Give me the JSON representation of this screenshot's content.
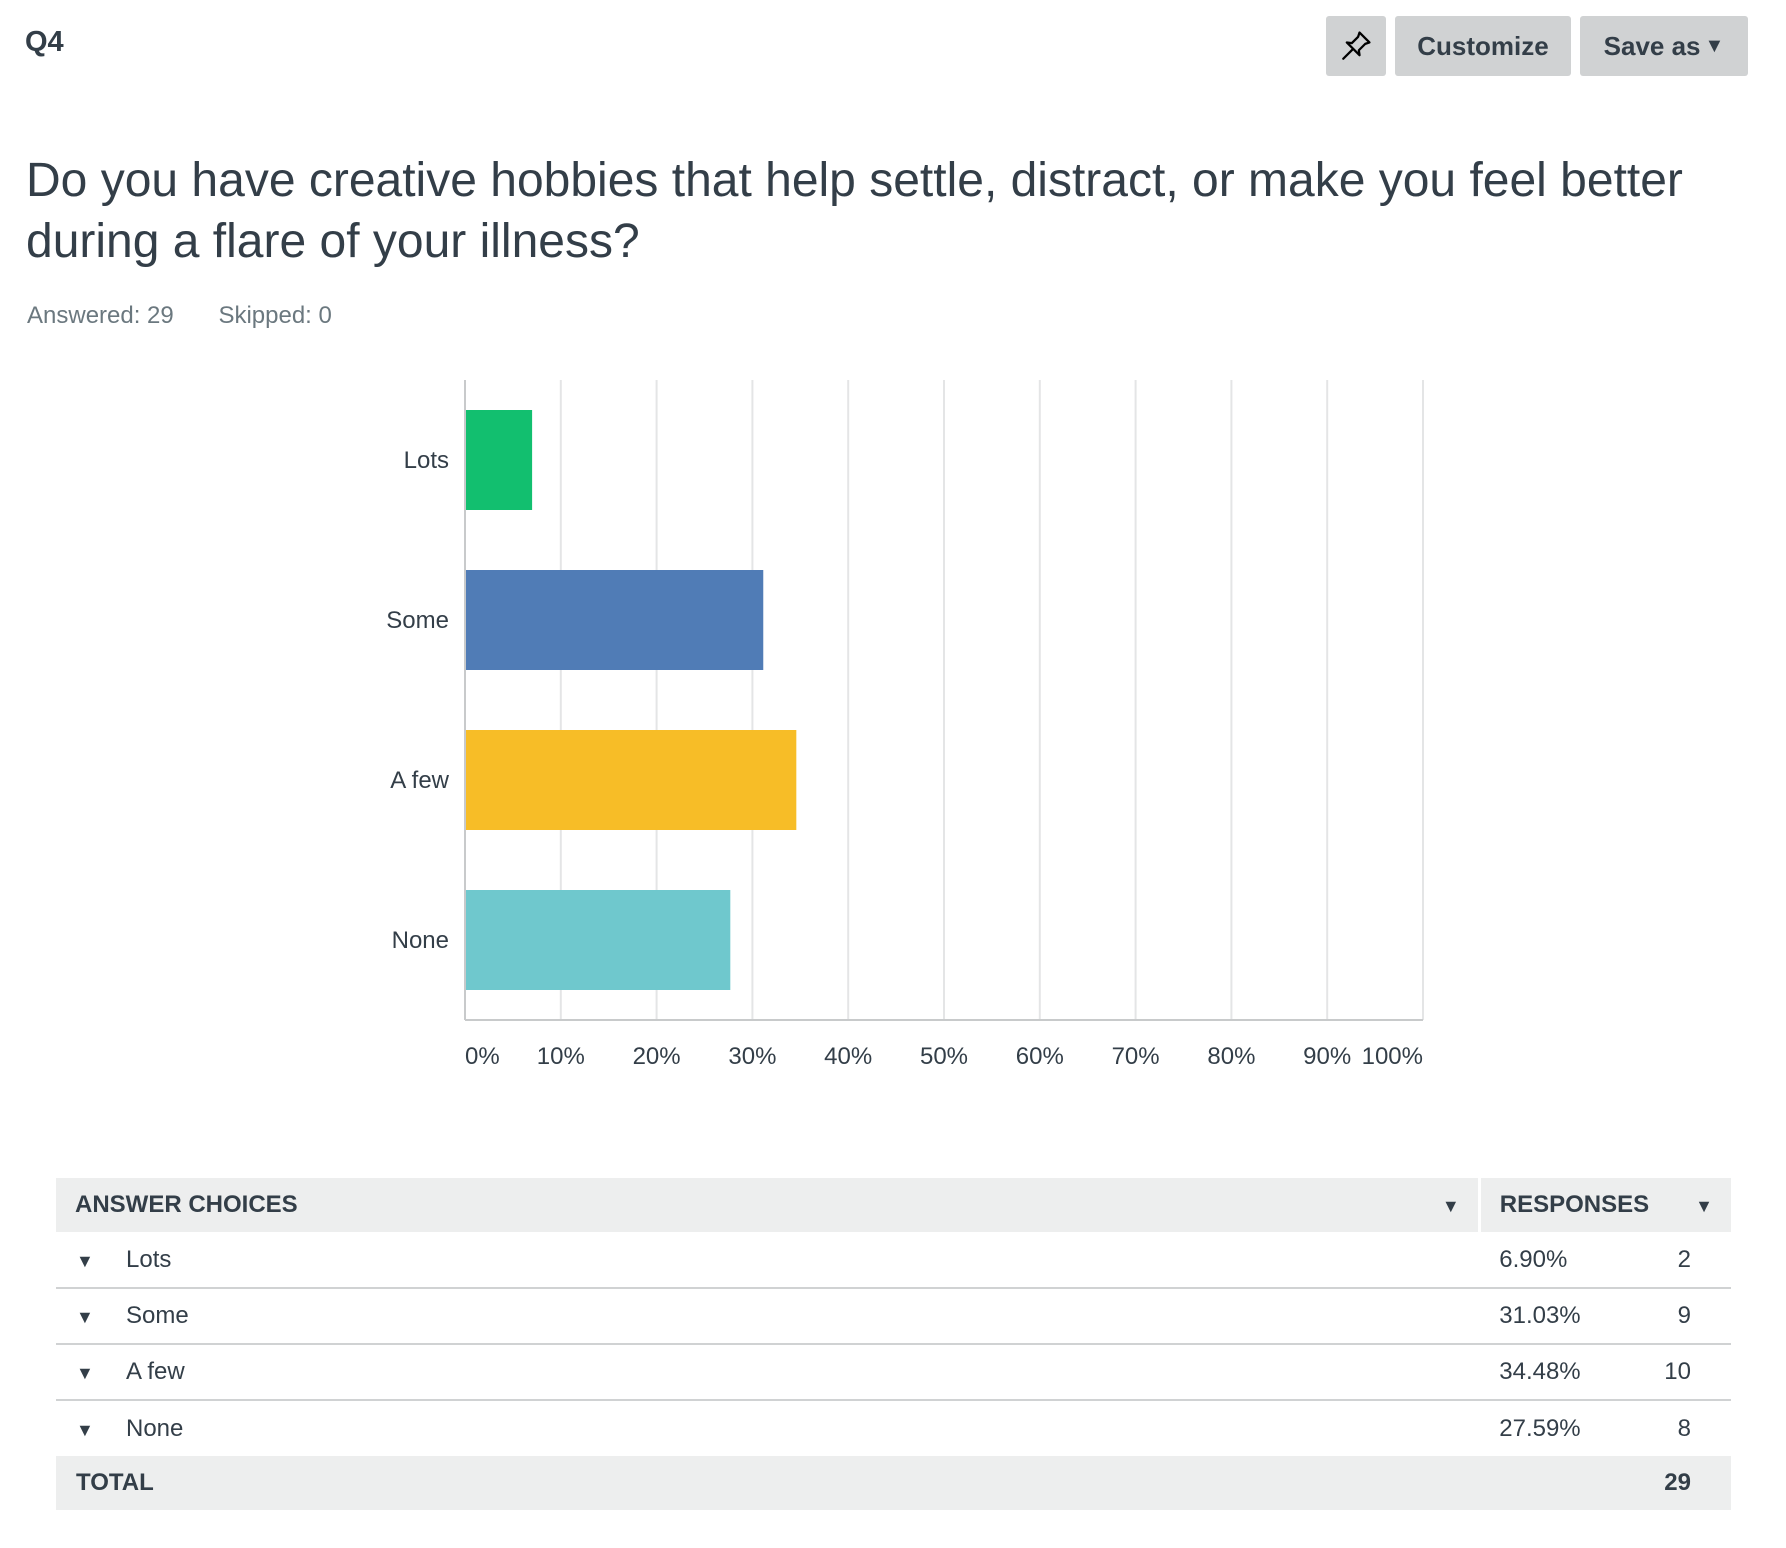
{
  "header": {
    "question_number": "Q4",
    "pin_icon": "pushpin-icon",
    "customize_label": "Customize",
    "saveas_label": "Save as"
  },
  "question": {
    "title": "Do you have creative hobbies that help settle, distract, or make you feel better during a flare of your illness?",
    "answered_label": "Answered: 29",
    "skipped_label": "Skipped: 0"
  },
  "chart_data": {
    "type": "bar",
    "orientation": "horizontal",
    "categories": [
      "Lots",
      "Some",
      "A few",
      "None"
    ],
    "values": [
      6.9,
      31.03,
      34.48,
      27.59
    ],
    "colors": [
      "#12bf6f",
      "#507cb6",
      "#f7bd27",
      "#6fc8cd"
    ],
    "xlim": [
      0,
      100
    ],
    "x_ticks": [
      "0%",
      "10%",
      "20%",
      "30%",
      "40%",
      "50%",
      "60%",
      "70%",
      "80%",
      "90%",
      "100%"
    ],
    "grid": true
  },
  "table": {
    "headers": {
      "choices": "ANSWER CHOICES",
      "responses": "RESPONSES"
    },
    "rows": [
      {
        "choice": "Lots",
        "percent": "6.90%",
        "count": "2"
      },
      {
        "choice": "Some",
        "percent": "31.03%",
        "count": "9"
      },
      {
        "choice": "A few",
        "percent": "34.48%",
        "count": "10"
      },
      {
        "choice": "None",
        "percent": "27.59%",
        "count": "8"
      }
    ],
    "total_label": "TOTAL",
    "total_count": "29"
  }
}
